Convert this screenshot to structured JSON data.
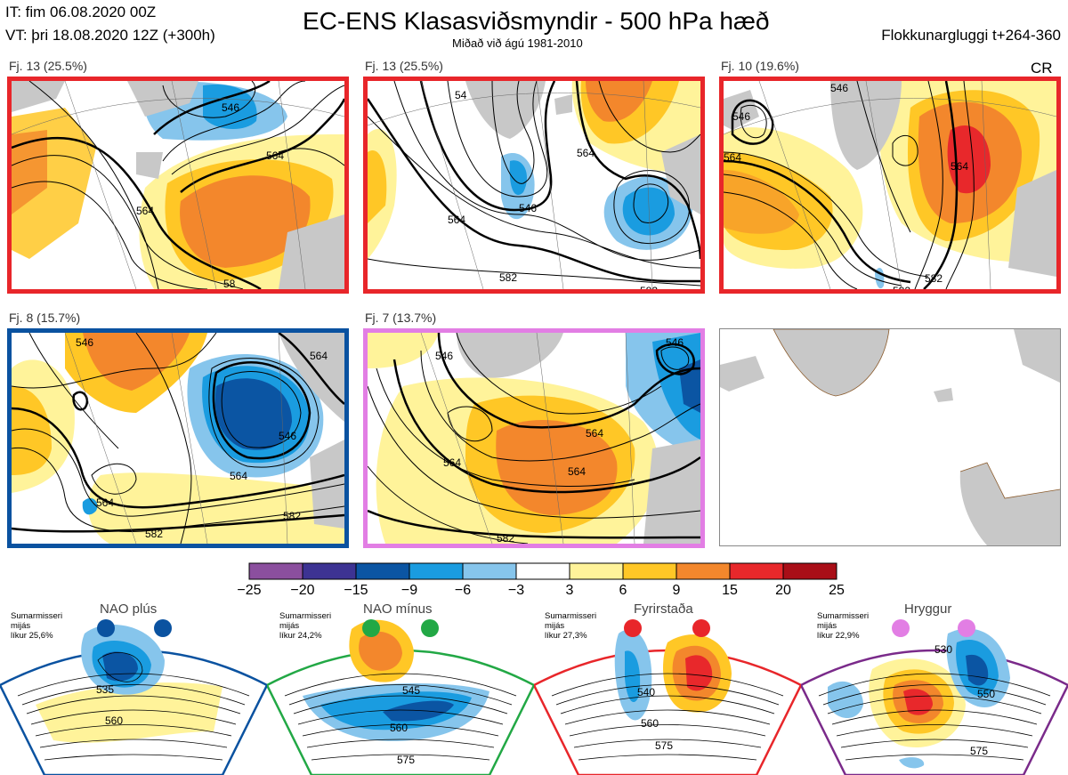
{
  "header": {
    "initial_time": "IT: fim 06.08.2020 00Z",
    "valid_time": "VT: þri 18.08.2020 12Z  (+300h)",
    "title": "EC-ENS Klasasviðsmyndir - 500 hPa hæð",
    "subtitle": "Miðað við ágú 1981-2010",
    "cluster_window": "Flokkunargluggi t+264-360"
  },
  "cr_label": "CR",
  "clusters": [
    {
      "label": "Fj. 13 (25.5%)",
      "regime_color": "#e8262a",
      "contour_labels": [
        "546",
        "564",
        "564",
        "58"
      ]
    },
    {
      "label": "Fj. 13 (25.5%)",
      "regime_color": "#e8262a",
      "contour_labels": [
        "546",
        "564",
        "564",
        "582",
        "582",
        "54"
      ]
    },
    {
      "label": "Fj. 10 (19.6%)",
      "regime_color": "#e8262a",
      "contour_labels": [
        "546",
        "546",
        "564",
        "564",
        "582",
        "582"
      ]
    },
    {
      "label": "Fj. 8 (15.7%)",
      "regime_color": "#0a52a0",
      "contour_labels": [
        "546",
        "564",
        "564",
        "546",
        "564",
        "582",
        "582"
      ]
    },
    {
      "label": "Fj. 7 (13.7%)",
      "regime_color": "#e27ee4",
      "contour_labels": [
        "546",
        "546",
        "564",
        "564",
        "564",
        "582"
      ]
    }
  ],
  "colorbar": {
    "ticks": [
      "−25",
      "−20",
      "−15",
      "−9",
      "−6",
      "−3",
      "3",
      "6",
      "9",
      "15",
      "20",
      "25"
    ],
    "colors": [
      "#8b4f9e",
      "#3d3393",
      "#0b55a3",
      "#1a9ce0",
      "#86c5ec",
      "#ffffff",
      "#fff39a",
      "#ffc726",
      "#f3872c",
      "#e8282b",
      "#a90e17"
    ]
  },
  "regimes": [
    {
      "name": "NAO plús",
      "season": "Sumarmisseri",
      "note": "mijás",
      "likelihood": "líkur 25,6%",
      "color": "#0a52a0",
      "labels": [
        "535",
        "560"
      ]
    },
    {
      "name": "NAO mínus",
      "season": "Sumarmisseri",
      "note": "mijás",
      "likelihood": "líkur 24,2%",
      "color": "#22a845",
      "labels": [
        "545",
        "560",
        "575"
      ]
    },
    {
      "name": "Fyrirstaða",
      "season": "Sumarmisseri",
      "note": "mijás",
      "likelihood": "líkur 27,3%",
      "color": "#e8262a",
      "labels": [
        "540",
        "560",
        "575"
      ]
    },
    {
      "name": "Hryggur",
      "season": "Sumarmisseri",
      "note": "mijás",
      "likelihood": "líkur 22,9%",
      "color": "#e27ee4",
      "labels": [
        "530",
        "550",
        "575"
      ]
    }
  ]
}
